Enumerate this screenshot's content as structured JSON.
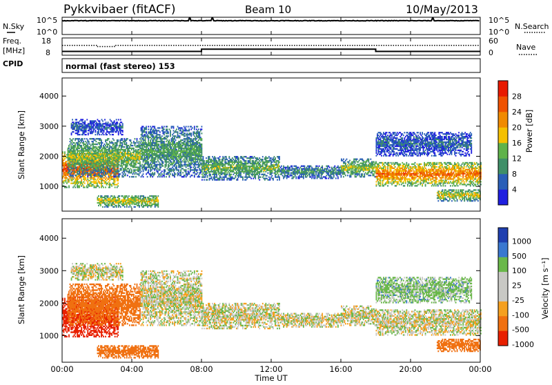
{
  "header": {
    "station": "Pykkvibaer (fitACF)",
    "beam": "Beam 10",
    "date": "10/May/2013"
  },
  "noise_panel": {
    "left_label": "N.Sky",
    "left_ticks": [
      "10^5",
      "10^0"
    ],
    "right_label": "N.Search",
    "right_ticks": [
      "10^5",
      "10^0"
    ]
  },
  "freq_panel": {
    "left_label_1": "Freq.",
    "left_label_2": "[MHz]",
    "left_ticks": [
      "18",
      "8"
    ],
    "right_label": "Nave",
    "right_ticks": [
      "60",
      "0"
    ],
    "cpid_label": "CPID"
  },
  "cpid_panel": {
    "text": "normal (fast stereo) 153"
  },
  "x_axis": {
    "label": "Time UT",
    "ticks": [
      "00:00",
      "04:00",
      "08:00",
      "12:00",
      "16:00",
      "20:00",
      "00:00"
    ]
  },
  "power_panel": {
    "ylabel": "Slant Range [km]",
    "yticks": [
      "1000",
      "2000",
      "3000",
      "4000"
    ],
    "colorbar_label": "Power [dB]",
    "colorbar_ticks": [
      "4",
      "8",
      "12",
      "16",
      "20",
      "24",
      "28"
    ]
  },
  "velocity_panel": {
    "ylabel": "Slant Range [km]",
    "yticks": [
      "1000",
      "2000",
      "3000",
      "4000"
    ],
    "colorbar_label": "Velocity [m s⁻¹]",
    "colorbar_ticks": [
      "1000",
      "500",
      "100",
      "25",
      "-25",
      "-100",
      "-500",
      "-1000"
    ]
  },
  "colors": {
    "power_scale": [
      "#1f1fe0",
      "#2a5fb8",
      "#3f8f68",
      "#5fb24a",
      "#f5c000",
      "#f08a00",
      "#ef5200",
      "#e81a00"
    ],
    "velocity_scale": [
      "#1f3fb0",
      "#3a78d0",
      "#6ab84a",
      "#c8c8c4",
      "#c8c8c4",
      "#f5a020",
      "#f07010",
      "#e82000"
    ],
    "scatter_gray": "#c8c8c4"
  },
  "chart_data": {
    "type": "heatmap",
    "time_range_hours": [
      0,
      24
    ],
    "x_ticks_hours": [
      0,
      4,
      8,
      12,
      16,
      20,
      24
    ],
    "range_km": [
      180,
      4600
    ],
    "y_ticks_km": [
      1000,
      2000,
      3000,
      4000
    ],
    "power_db_range": [
      0,
      32
    ],
    "velocity_range_ms": [
      -1200,
      1200
    ],
    "noise_log_range": [
      0,
      5
    ],
    "freq_mhz_range": [
      8,
      18
    ],
    "nave_range": [
      0,
      60
    ],
    "echo_bands": [
      {
        "t": [
          0.0,
          3.2
        ],
        "r": [
          950,
          2200
        ],
        "power_db": 27,
        "vel_ms": -600
      },
      {
        "t": [
          0.3,
          4.5
        ],
        "r": [
          1300,
          2600
        ],
        "power_db": 15,
        "vel_ms": -300
      },
      {
        "t": [
          0.5,
          3.5
        ],
        "r": [
          2700,
          3200
        ],
        "power_db": 6,
        "vel_ms": 0
      },
      {
        "t": [
          2.0,
          5.5
        ],
        "r": [
          300,
          700
        ],
        "power_db": 18,
        "vel_ms": -200
      },
      {
        "t": [
          4.5,
          8.0
        ],
        "r": [
          1300,
          3000
        ],
        "power_db": 12,
        "vel_ms": 0
      },
      {
        "t": [
          8.0,
          12.5
        ],
        "r": [
          1200,
          2000
        ],
        "power_db": 14,
        "vel_ms": 0
      },
      {
        "t": [
          12.5,
          16.0
        ],
        "r": [
          1250,
          1700
        ],
        "power_db": 10,
        "vel_ms": 0
      },
      {
        "t": [
          16.0,
          18.0
        ],
        "r": [
          1300,
          1900
        ],
        "power_db": 16,
        "vel_ms": 0
      },
      {
        "t": [
          18.0,
          24.0
        ],
        "r": [
          1000,
          1800
        ],
        "power_db": 25,
        "vel_ms": 0
      },
      {
        "t": [
          18.0,
          23.5
        ],
        "r": [
          2000,
          2800
        ],
        "power_db": 7,
        "vel_ms": 50
      },
      {
        "t": [
          21.5,
          24.0
        ],
        "r": [
          500,
          900
        ],
        "power_db": 18,
        "vel_ms": -400
      }
    ]
  }
}
